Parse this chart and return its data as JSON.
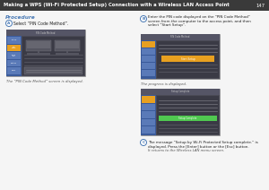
{
  "title": "Making a WPS (Wi-Fi Protected Setup) Connection with a Wireless LAN Access Point",
  "page_num": "147",
  "title_bg": "#3a3a3a",
  "title_color": "#ffffff",
  "page_bg": "#f5f5f5",
  "procedure_color": "#4a7ab5",
  "section_label_color": "#4a7ab5",
  "body_text_color": "#222222",
  "italic_text_color": "#444444",
  "caption_color": "#555555",
  "step_a_label": "A",
  "step_b_label": "B",
  "step_c_label": "C",
  "step_a_text": "Select “PIN Code Method”.",
  "step_b_text": "Enter the PIN code displayed on the “PIN Code Method”\nscreen from the computer to the access point, and then\nselect “Start Setup”.",
  "step_c_text": "The message “Setup by Wi-Fi Protected Setup complete.” is\ndisplayed. Press the [Enter] button or the [Esc] button.",
  "step_c_sub": "It returns to the Wireless LAN menu screen.",
  "caption_a": "The “PIN Code Method” screen is displayed.",
  "caption_b": "The progress is displayed.",
  "procedure_label": "Procedure",
  "screen_bg": "#4a4a55",
  "screen_sidebar_dark": "#3a5a9a",
  "screen_sidebar_btn": "#e8a020",
  "screen_sidebar_item": "#5a7ab8",
  "screen_content_bg": "#3a3a45",
  "screen_highlight": "#e8a020",
  "screen_green": "#50c850",
  "screen_header": "#555566"
}
